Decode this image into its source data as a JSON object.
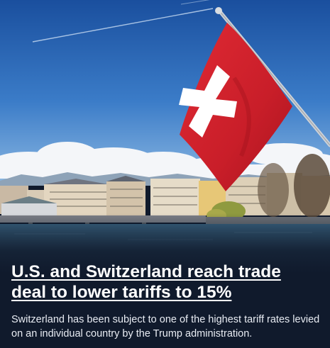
{
  "article": {
    "headline": "U.S. and Switzerland reach trade deal to lower tariffs to 15%",
    "summary": "Switzerland has been subject to one of the highest tariff rates levied on an individual country by the Trump administration."
  },
  "image": {
    "subject": "swiss-flag-over-geneva-lakefront",
    "colors": {
      "sky_top": "#1e56a6",
      "sky_bottom": "#6fa6dc",
      "flag_red": "#d8232e",
      "flag_cross": "#ffffff",
      "water": "#1f3e58",
      "background": "#101a2c"
    }
  }
}
